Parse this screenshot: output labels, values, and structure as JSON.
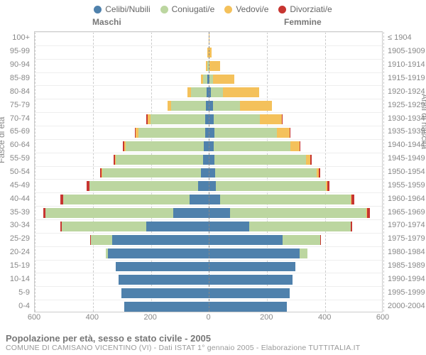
{
  "legend": [
    {
      "label": "Celibi/Nubili",
      "color": "#4f81ac"
    },
    {
      "label": "Coniugati/e",
      "color": "#bcd6a0"
    },
    {
      "label": "Vedovi/e",
      "color": "#f4c15b"
    },
    {
      "label": "Divorziati/e",
      "color": "#c73531"
    }
  ],
  "header_male": "Maschi",
  "header_female": "Femmine",
  "axis_left_label": "Fasce di età",
  "axis_right_label": "Anni di nascita",
  "x_max": 600,
  "x_ticks": [
    -600,
    -400,
    -200,
    0,
    200,
    400,
    600
  ],
  "x_labels": [
    "600",
    "400",
    "200",
    "0",
    "200",
    "400",
    "600"
  ],
  "plot_bg": "#ffffff",
  "grid_color": "#cccccc",
  "rows": [
    {
      "age": "100+",
      "year": "≤ 1904",
      "m": [
        0,
        0,
        0,
        0
      ],
      "f": [
        0,
        0,
        3,
        0
      ]
    },
    {
      "age": "95-99",
      "year": "1905-1909",
      "m": [
        0,
        0,
        3,
        0
      ],
      "f": [
        0,
        0,
        10,
        0
      ]
    },
    {
      "age": "90-94",
      "year": "1910-1914",
      "m": [
        0,
        4,
        4,
        0
      ],
      "f": [
        0,
        3,
        38,
        0
      ]
    },
    {
      "age": "85-89",
      "year": "1915-1919",
      "m": [
        3,
        15,
        8,
        0
      ],
      "f": [
        3,
        12,
        75,
        0
      ]
    },
    {
      "age": "80-84",
      "year": "1920-1924",
      "m": [
        5,
        55,
        12,
        0
      ],
      "f": [
        8,
        42,
        125,
        0
      ]
    },
    {
      "age": "75-79",
      "year": "1925-1929",
      "m": [
        8,
        120,
        13,
        0
      ],
      "f": [
        15,
        95,
        110,
        0
      ]
    },
    {
      "age": "70-74",
      "year": "1930-1934",
      "m": [
        10,
        190,
        10,
        3
      ],
      "f": [
        18,
        160,
        75,
        3
      ]
    },
    {
      "age": "65-69",
      "year": "1935-1939",
      "m": [
        12,
        230,
        8,
        3
      ],
      "f": [
        20,
        215,
        45,
        3
      ]
    },
    {
      "age": "60-64",
      "year": "1940-1944",
      "m": [
        15,
        270,
        5,
        4
      ],
      "f": [
        18,
        265,
        30,
        4
      ]
    },
    {
      "age": "55-59",
      "year": "1945-1949",
      "m": [
        18,
        300,
        3,
        5
      ],
      "f": [
        20,
        315,
        15,
        5
      ]
    },
    {
      "age": "50-54",
      "year": "1950-1954",
      "m": [
        25,
        340,
        2,
        6
      ],
      "f": [
        22,
        350,
        8,
        6
      ]
    },
    {
      "age": "45-49",
      "year": "1955-1959",
      "m": [
        35,
        375,
        0,
        8
      ],
      "f": [
        25,
        380,
        5,
        8
      ]
    },
    {
      "age": "40-44",
      "year": "1960-1964",
      "m": [
        65,
        435,
        0,
        10
      ],
      "f": [
        40,
        450,
        3,
        10
      ]
    },
    {
      "age": "35-39",
      "year": "1965-1969",
      "m": [
        120,
        440,
        0,
        8
      ],
      "f": [
        75,
        470,
        2,
        8
      ]
    },
    {
      "age": "30-34",
      "year": "1970-1974",
      "m": [
        215,
        290,
        0,
        5
      ],
      "f": [
        140,
        350,
        0,
        5
      ]
    },
    {
      "age": "25-29",
      "year": "1975-1979",
      "m": [
        330,
        75,
        0,
        2
      ],
      "f": [
        255,
        130,
        0,
        2
      ]
    },
    {
      "age": "20-24",
      "year": "1980-1984",
      "m": [
        345,
        8,
        0,
        0
      ],
      "f": [
        315,
        25,
        0,
        0
      ]
    },
    {
      "age": "15-19",
      "year": "1985-1989",
      "m": [
        320,
        0,
        0,
        0
      ],
      "f": [
        300,
        0,
        0,
        0
      ]
    },
    {
      "age": "10-14",
      "year": "1990-1994",
      "m": [
        310,
        0,
        0,
        0
      ],
      "f": [
        290,
        0,
        0,
        0
      ]
    },
    {
      "age": "5-9",
      "year": "1995-1999",
      "m": [
        300,
        0,
        0,
        0
      ],
      "f": [
        280,
        0,
        0,
        0
      ]
    },
    {
      "age": "0-4",
      "year": "2000-2004",
      "m": [
        290,
        0,
        0,
        0
      ],
      "f": [
        270,
        0,
        0,
        0
      ]
    }
  ],
  "footer_title": "Popolazione per età, sesso e stato civile - 2005",
  "footer_sub": "COMUNE DI CAMISANO VICENTINO (VI) - Dati ISTAT 1° gennaio 2005 - Elaborazione TUTTITALIA.IT"
}
